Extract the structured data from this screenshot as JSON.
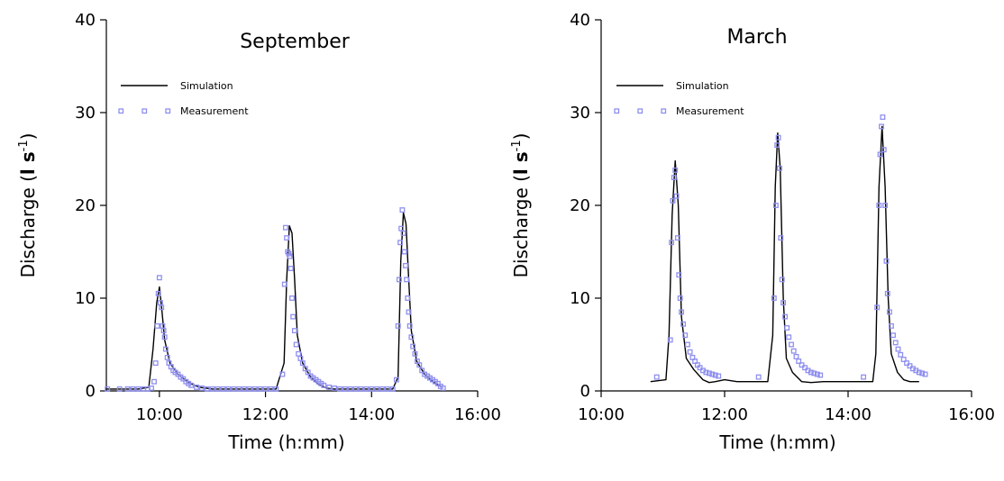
{
  "chart_data": [
    {
      "type": "line",
      "title": "September",
      "xlabel": "Time (h:mm)",
      "ylabel_main": "Discharge (",
      "ylabel_unit_l": "l s",
      "ylabel_exp": "-1",
      "ylabel_close": ")",
      "xlim": [
        9.0,
        16.0
      ],
      "ylim": [
        0,
        40
      ],
      "xticks": [
        10,
        12,
        14,
        16
      ],
      "xtick_labels": [
        "10:00",
        "12:00",
        "14:00",
        "16:00"
      ],
      "yticks": [
        0,
        10,
        20,
        30,
        40
      ],
      "ytick_labels": [
        "0",
        "10",
        "20",
        "30",
        "40"
      ],
      "legend_position": "upper-left",
      "series": [
        {
          "name": "Simulation",
          "style": "line",
          "color": "#000000",
          "x": [
            9.0,
            9.6,
            9.8,
            9.88,
            9.95,
            10.0,
            10.05,
            10.1,
            10.2,
            10.35,
            10.55,
            10.75,
            11.0,
            12.2,
            12.35,
            12.4,
            12.45,
            12.5,
            12.55,
            12.6,
            12.7,
            12.85,
            13.0,
            13.15,
            13.3,
            14.4,
            14.5,
            14.55,
            14.6,
            14.65,
            14.7,
            14.75,
            14.85,
            15.0,
            15.15,
            15.3
          ],
          "y": [
            0.2,
            0.2,
            0.4,
            4.5,
            9.5,
            11.2,
            8.5,
            5.5,
            3.0,
            1.8,
            0.9,
            0.4,
            0.2,
            0.2,
            3.0,
            12.0,
            17.8,
            17.0,
            12.0,
            6.0,
            3.0,
            1.5,
            0.7,
            0.3,
            0.2,
            0.2,
            1.5,
            14.0,
            19.2,
            18.0,
            12.0,
            6.5,
            3.2,
            1.8,
            1.0,
            0.5
          ]
        },
        {
          "name": "Measurement",
          "style": "markers",
          "color": "#8f8ff0",
          "x": [
            9.02,
            9.25,
            9.4,
            9.5,
            9.6,
            9.7,
            9.78,
            9.85,
            9.9,
            9.93,
            9.96,
            9.98,
            10.0,
            10.02,
            10.04,
            10.06,
            10.08,
            10.1,
            10.12,
            10.15,
            10.18,
            10.22,
            10.26,
            10.3,
            10.35,
            10.4,
            10.45,
            10.5,
            10.55,
            10.6,
            10.7,
            10.8,
            10.9,
            11.0,
            11.1,
            11.2,
            11.3,
            11.4,
            11.5,
            11.6,
            11.7,
            11.8,
            11.9,
            12.0,
            12.1,
            12.2,
            12.32,
            12.36,
            12.38,
            12.4,
            12.42,
            12.44,
            12.46,
            12.48,
            12.5,
            12.52,
            12.55,
            12.58,
            12.62,
            12.66,
            12.7,
            12.75,
            12.8,
            12.85,
            12.9,
            12.95,
            13.0,
            13.05,
            13.1,
            13.2,
            13.3,
            13.4,
            13.5,
            13.6,
            13.7,
            13.8,
            13.9,
            14.0,
            14.1,
            14.2,
            14.3,
            14.4,
            14.47,
            14.5,
            14.52,
            14.54,
            14.56,
            14.58,
            14.6,
            14.62,
            14.64,
            14.66,
            14.68,
            14.7,
            14.72,
            14.75,
            14.78,
            14.82,
            14.86,
            14.9,
            14.95,
            15.0,
            15.05,
            15.1,
            15.15,
            15.2,
            15.25,
            15.3,
            15.35
          ],
          "y": [
            0.2,
            0.2,
            0.2,
            0.2,
            0.2,
            0.2,
            0.2,
            0.3,
            1.0,
            3.0,
            7.0,
            10.5,
            12.2,
            9.5,
            9.0,
            7.0,
            6.5,
            5.8,
            4.5,
            3.6,
            3.0,
            2.6,
            2.2,
            2.0,
            1.8,
            1.5,
            1.3,
            1.0,
            0.8,
            0.6,
            0.4,
            0.3,
            0.2,
            0.2,
            0.2,
            0.2,
            0.2,
            0.2,
            0.2,
            0.2,
            0.2,
            0.2,
            0.2,
            0.2,
            0.2,
            0.2,
            1.8,
            11.5,
            17.6,
            16.5,
            15.0,
            14.8,
            14.5,
            13.2,
            10.0,
            8.0,
            6.5,
            5.0,
            4.0,
            3.5,
            3.0,
            2.4,
            2.0,
            1.6,
            1.4,
            1.2,
            1.0,
            0.8,
            0.6,
            0.4,
            0.3,
            0.2,
            0.2,
            0.2,
            0.2,
            0.2,
            0.2,
            0.2,
            0.2,
            0.2,
            0.2,
            0.2,
            1.2,
            7.0,
            12.0,
            16.0,
            17.5,
            19.5,
            17.0,
            15.0,
            13.5,
            12.0,
            10.0,
            8.5,
            7.0,
            5.8,
            4.8,
            4.0,
            3.2,
            2.8,
            2.2,
            1.8,
            1.6,
            1.4,
            1.2,
            1.0,
            0.8,
            0.5,
            0.3
          ]
        }
      ]
    },
    {
      "type": "line",
      "title": "March",
      "xlabel": "Time (h:mm)",
      "ylabel_main": "Discharge (",
      "ylabel_unit_l": "l s",
      "ylabel_exp": "-1",
      "ylabel_close": ")",
      "xlim": [
        10.0,
        16.0
      ],
      "ylim": [
        0,
        40
      ],
      "xticks": [
        10,
        12,
        14,
        16
      ],
      "xtick_labels": [
        "10:00",
        "12:00",
        "14:00",
        "16:00"
      ],
      "yticks": [
        0,
        10,
        20,
        30,
        40
      ],
      "ytick_labels": [
        "0",
        "10",
        "20",
        "30",
        "40"
      ],
      "legend_position": "upper-left",
      "series": [
        {
          "name": "Simulation",
          "style": "line",
          "color": "#000000",
          "x": [
            10.8,
            11.05,
            11.1,
            11.15,
            11.2,
            11.25,
            11.3,
            11.38,
            11.5,
            11.65,
            11.75,
            11.85,
            12.0,
            12.2,
            12.7,
            12.78,
            12.82,
            12.86,
            12.9,
            12.95,
            13.0,
            13.1,
            13.25,
            13.4,
            13.6,
            14.3,
            14.4,
            14.45,
            14.5,
            14.55,
            14.6,
            14.65,
            14.7,
            14.8,
            14.9,
            15.0,
            15.15
          ],
          "y": [
            1.0,
            1.2,
            6.0,
            19.0,
            24.8,
            20.0,
            8.0,
            3.5,
            2.3,
            1.2,
            0.9,
            1.0,
            1.2,
            1.0,
            1.0,
            6.0,
            22.0,
            27.8,
            24.0,
            10.0,
            3.5,
            2.0,
            1.0,
            0.9,
            1.0,
            1.0,
            1.0,
            4.0,
            22.0,
            28.5,
            22.0,
            10.0,
            4.0,
            2.0,
            1.2,
            1.0,
            1.0
          ]
        },
        {
          "name": "Measurement",
          "style": "markers",
          "color": "#8f8ff0",
          "x": [
            10.9,
            11.12,
            11.14,
            11.16,
            11.18,
            11.2,
            11.22,
            11.24,
            11.26,
            11.28,
            11.3,
            11.33,
            11.36,
            11.4,
            11.44,
            11.48,
            11.52,
            11.56,
            11.6,
            11.65,
            11.7,
            11.75,
            11.8,
            11.85,
            11.9,
            12.55,
            12.8,
            12.83,
            12.85,
            12.87,
            12.89,
            12.91,
            12.93,
            12.95,
            12.98,
            13.01,
            13.04,
            13.08,
            13.12,
            13.16,
            13.2,
            13.25,
            13.3,
            13.35,
            13.4,
            13.45,
            13.5,
            13.55,
            14.25,
            14.47,
            14.5,
            14.52,
            14.54,
            14.56,
            14.58,
            14.6,
            14.62,
            14.64,
            14.67,
            14.7,
            14.73,
            14.77,
            14.81,
            14.85,
            14.9,
            14.95,
            15.0,
            15.05,
            15.1,
            15.15,
            15.2,
            15.25
          ],
          "y": [
            1.5,
            5.5,
            16.0,
            20.5,
            23.0,
            23.8,
            21.0,
            16.5,
            12.5,
            10.0,
            8.5,
            7.2,
            6.0,
            5.0,
            4.2,
            3.6,
            3.2,
            2.8,
            2.5,
            2.2,
            2.0,
            1.9,
            1.8,
            1.7,
            1.6,
            1.5,
            10.0,
            20.0,
            26.5,
            27.3,
            24.0,
            16.5,
            12.0,
            9.5,
            8.0,
            6.8,
            5.8,
            5.0,
            4.3,
            3.7,
            3.2,
            2.8,
            2.5,
            2.2,
            2.0,
            1.9,
            1.8,
            1.7,
            1.5,
            9.0,
            20.0,
            25.5,
            28.5,
            29.5,
            26.0,
            20.0,
            14.0,
            10.5,
            8.5,
            7.0,
            6.0,
            5.2,
            4.5,
            3.9,
            3.4,
            3.0,
            2.7,
            2.4,
            2.2,
            2.0,
            1.9,
            1.8
          ]
        }
      ]
    }
  ]
}
